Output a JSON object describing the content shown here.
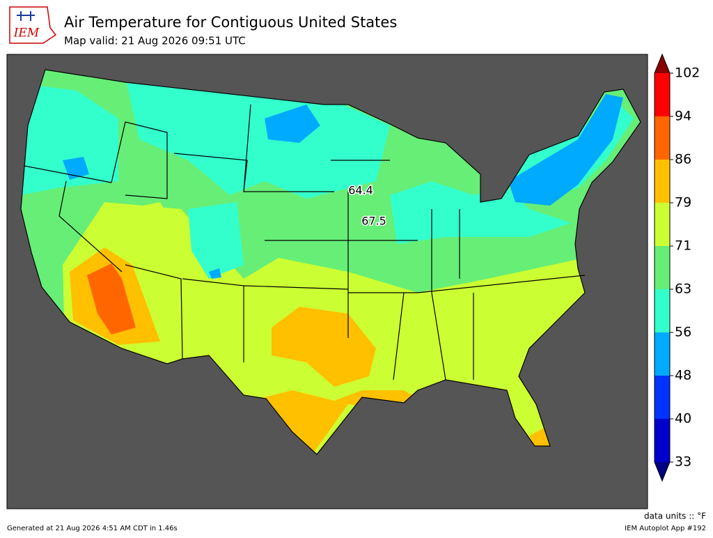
{
  "header": {
    "logo": "IEM",
    "title": "Air Temperature for Contiguous United States",
    "subtitle": "Map valid: 21 Aug 2026 09:51 UTC"
  },
  "map": {
    "station_labels": [
      64.4,
      67.5
    ]
  },
  "colorbar": {
    "ticks": [
      33,
      40,
      48,
      56,
      63,
      71,
      79,
      86,
      94,
      102
    ],
    "colors": [
      "#0000cc",
      "#0033ff",
      "#00aaff",
      "#33ffcc",
      "#66ee77",
      "#ccff33",
      "#ffc000",
      "#ff6600",
      "#ff0000"
    ],
    "under_color": "#000080",
    "over_color": "#8b0000"
  },
  "footer": {
    "generated": "Generated at 21 Aug 2026 4:51 AM CDT in 1.46s",
    "units": "data units :: °F",
    "app": "IEM Autoplot App #192"
  }
}
